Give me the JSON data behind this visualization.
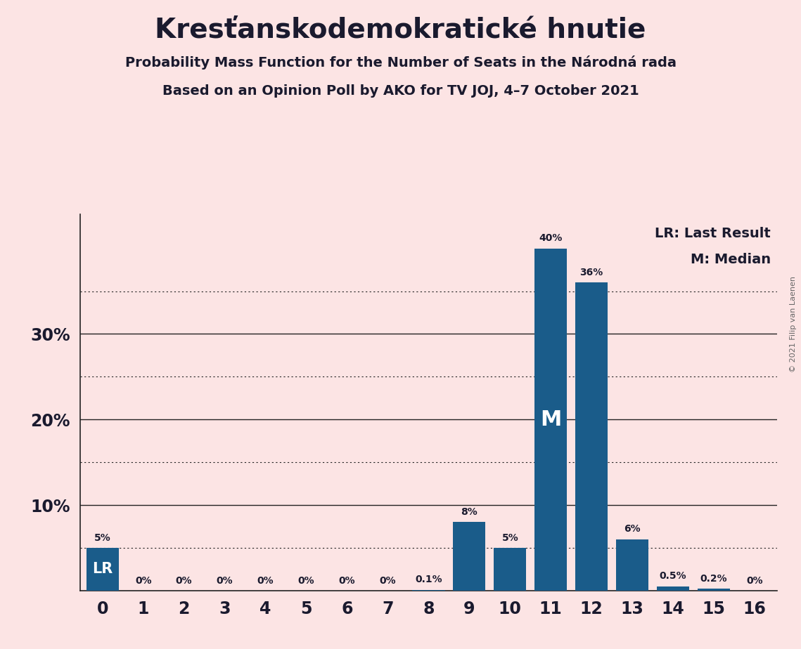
{
  "title": "Kresťanskodemokratické hnutie",
  "subtitle1": "Probability Mass Function for the Number of Seats in the Národná rada",
  "subtitle2": "Based on an Opinion Poll by AKO for TV JOJ, 4–7 October 2021",
  "copyright": "© 2021 Filip van Laenen",
  "categories": [
    0,
    1,
    2,
    3,
    4,
    5,
    6,
    7,
    8,
    9,
    10,
    11,
    12,
    13,
    14,
    15,
    16
  ],
  "values": [
    0.05,
    0.0,
    0.0,
    0.0,
    0.0,
    0.0,
    0.0,
    0.0,
    0.001,
    0.08,
    0.05,
    0.4,
    0.36,
    0.06,
    0.005,
    0.002,
    0.0
  ],
  "labels": [
    "5%",
    "0%",
    "0%",
    "0%",
    "0%",
    "0%",
    "0%",
    "0%",
    "0.1%",
    "8%",
    "5%",
    "40%",
    "36%",
    "6%",
    "0.5%",
    "0.2%",
    "0%"
  ],
  "bar_color": "#1a5c8a",
  "background_color": "#fce4e4",
  "lr_bar_index": 0,
  "median_bar_index": 11,
  "solid_lines": [
    0.1,
    0.2,
    0.3
  ],
  "dotted_lines": [
    0.05,
    0.15,
    0.25,
    0.35
  ],
  "legend_text1": "LR: Last Result",
  "legend_text2": "M: Median",
  "lr_label": "LR",
  "median_label": "M",
  "ylim": [
    0,
    0.44
  ],
  "yticks": [
    0.1,
    0.2,
    0.3
  ],
  "ytick_labels": [
    "10%",
    "20%",
    "30%"
  ]
}
